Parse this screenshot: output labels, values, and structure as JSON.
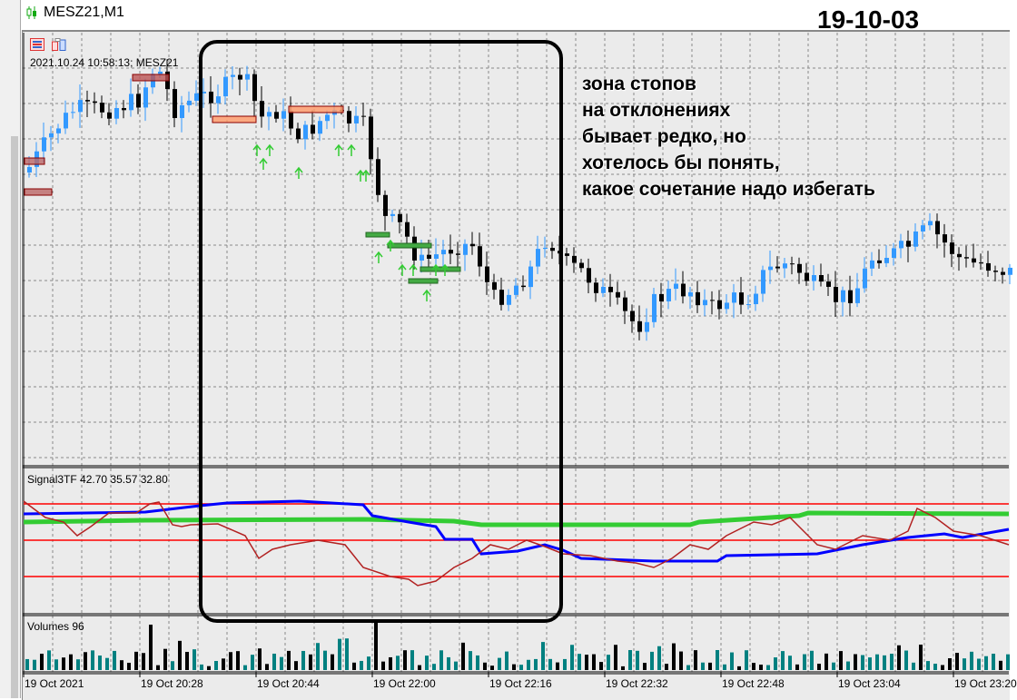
{
  "window": {
    "title": "MESZ21,M1",
    "icon": "candlestick-chart-icon"
  },
  "date_label": "19-10-03",
  "chart": {
    "timestamp_label": "2021.10.24 10:58:13; MESZ21",
    "toolbar_icons": [
      "trade-list-icon",
      "chart-objects-icon"
    ],
    "annotation_lines": [
      "зона стопов",
      "на отклонениях",
      "бывает редко, но",
      "хотелось бы понять,",
      "какое сочетание надо избегать"
    ],
    "colors": {
      "bull": "#3399ff",
      "bear": "#000000",
      "background": "#ebebeb"
    }
  },
  "indicator": {
    "label": "Signal3TF 42.70 35.57 32.80",
    "colors": {
      "line1": "#0000ff",
      "line2": "#33cc33",
      "line3": "#b22222",
      "levels": "#ff0000"
    }
  },
  "volumes": {
    "label": "Volumes 96",
    "colors": {
      "up": "#008080",
      "down": "#000000"
    }
  },
  "time_axis": [
    "19 Oct 2021",
    "19 Oct 20:28",
    "19 Oct 20:44",
    "19 Oct 22:00",
    "19 Oct 22:16",
    "19 Oct 22:32",
    "19 Oct 22:48",
    "19 Oct 23:04",
    "19 Oct 23:20"
  ]
}
